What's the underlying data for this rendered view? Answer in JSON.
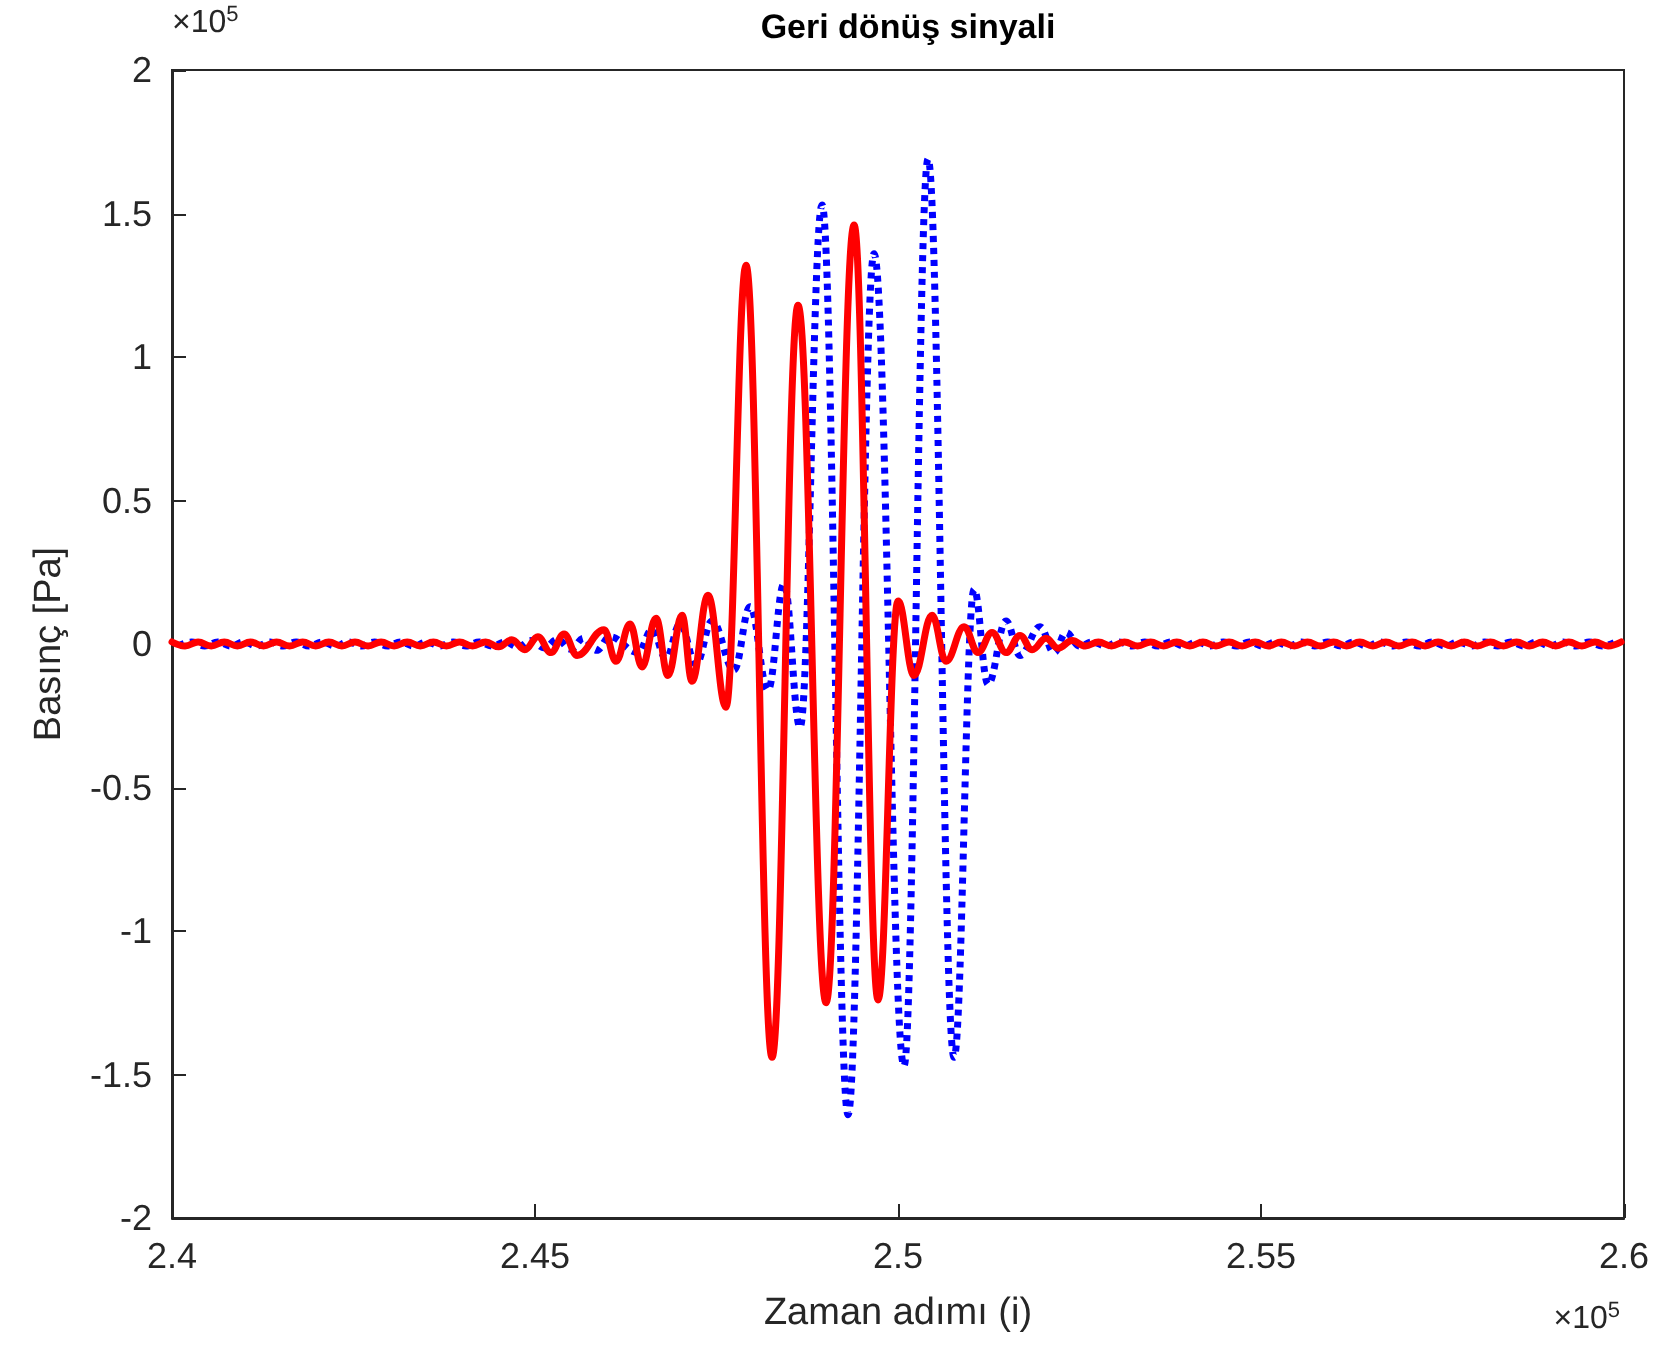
{
  "chart_data": {
    "type": "line",
    "title": "Geri dönüş sinyali",
    "xlabel": "Zaman adımı (i)",
    "ylabel": "Basınç [Pa]",
    "annotations": [
      "×10$^{5}$",
      "×10$^{5}$"
    ],
    "xlim": [
      2.4,
      2.6
    ],
    "xticks": [
      2.4,
      2.45,
      2.5,
      2.55,
      2.6
    ],
    "ylim": [
      -2,
      2
    ],
    "yticks": [
      -2,
      -1.5,
      -1,
      -0.5,
      0,
      0.5,
      1,
      1.5,
      2
    ],
    "grid": false,
    "marker": "none",
    "series": [
      {
        "color": "#0000ff",
        "line_style": "dotted",
        "x": [
          2.4009,
          2.4027,
          2.4045,
          2.4063,
          2.4081,
          2.4099,
          2.4117,
          2.4135,
          2.4153,
          2.4171,
          2.4189,
          2.4207,
          2.4225,
          2.4243,
          2.4261,
          2.4279,
          2.4297,
          2.4315,
          2.4333,
          2.4351,
          2.4369,
          2.4387,
          2.4405,
          2.4423,
          2.4441,
          2.4459,
          2.4477,
          2.4495,
          2.4513,
          2.4531,
          2.4549,
          2.4567,
          2.4585,
          2.4603,
          2.46419,
          2.46612,
          2.46805,
          2.46998,
          2.47218,
          2.47439,
          2.47742,
          2.47962,
          2.4821,
          2.4843,
          2.48651,
          2.48954,
          2.49312,
          2.4967,
          2.50083,
          2.50414,
          2.50772,
          2.51048,
          2.5124,
          2.51488,
          2.51681,
          2.51957,
          2.5215,
          2.52315,
          2.525,
          2.5268,
          2.5286,
          2.5304,
          2.5322,
          2.534,
          2.5358,
          2.5376,
          2.5394,
          2.5412,
          2.543,
          2.5448,
          2.5466,
          2.5484,
          2.5502,
          2.552,
          2.5538,
          2.5556,
          2.5574,
          2.5592,
          2.561,
          2.5628,
          2.5646,
          2.5664,
          2.5682,
          2.57,
          2.5718,
          2.5736,
          2.5754,
          2.5772,
          2.579,
          2.5808,
          2.5826,
          2.5844,
          2.5862,
          2.588,
          2.5898,
          2.5916,
          2.5934,
          2.5952,
          2.597,
          2.5988
        ],
        "values": [
          -0.007,
          0.007,
          -0.007,
          0.007,
          -0.007,
          0.007,
          -0.007,
          0.007,
          -0.007,
          0.007,
          -0.007,
          0.007,
          -0.007,
          0.007,
          -0.007,
          0.007,
          -0.007,
          0.007,
          -0.007,
          0.007,
          -0.007,
          0.007,
          -0.007,
          0.007,
          -0.007,
          0.007,
          -0.01,
          0.012,
          -0.014,
          0.016,
          -0.018,
          0.02,
          -0.022,
          0.025,
          -0.03,
          0.05,
          -0.05,
          0.07,
          -0.07,
          0.08,
          -0.09,
          0.13,
          -0.16,
          0.21,
          -0.29,
          1.53,
          -1.64,
          1.36,
          -1.47,
          1.69,
          -1.44,
          0.19,
          -0.14,
          0.08,
          -0.04,
          0.06,
          -0.03,
          0.04,
          -0.007,
          0.007,
          -0.007,
          0.007,
          -0.007,
          0.007,
          -0.007,
          0.007,
          -0.007,
          0.007,
          -0.007,
          0.007,
          -0.007,
          0.007,
          -0.007,
          0.007,
          -0.007,
          0.007,
          -0.007,
          0.007,
          -0.007,
          0.007,
          -0.007,
          0.007,
          -0.007,
          0.007,
          -0.007,
          0.007,
          -0.007,
          0.007,
          -0.007,
          0.007,
          -0.007,
          0.007,
          -0.007,
          0.007,
          -0.007,
          0.007,
          -0.007,
          0.007,
          -0.007,
          0.007
        ]
      },
      {
        "color": "#ff0000",
        "line_style": "solid",
        "x": [
          2.4,
          2.4018,
          2.4036,
          2.4054,
          2.4072,
          2.409,
          2.4108,
          2.4126,
          2.4144,
          2.4162,
          2.418,
          2.4198,
          2.4216,
          2.4234,
          2.4252,
          2.427,
          2.4288,
          2.4306,
          2.4324,
          2.4342,
          2.436,
          2.4378,
          2.4396,
          2.4414,
          2.4432,
          2.445,
          2.4468,
          2.4486,
          2.4504,
          2.4522,
          2.454,
          2.4558,
          2.45951,
          2.46116,
          2.46309,
          2.46474,
          2.46667,
          2.46832,
          2.47025,
          2.47163,
          2.47383,
          2.47631,
          2.47907,
          2.48265,
          2.48623,
          2.49009,
          2.49395,
          2.49725,
          2.50001,
          2.50221,
          2.50469,
          2.50662,
          2.5091,
          2.51102,
          2.51295,
          2.51488,
          2.51681,
          2.51847,
          2.52039,
          2.52205,
          2.52398,
          2.5258,
          2.5276,
          2.5294,
          2.5312,
          2.533,
          2.5348,
          2.5366,
          2.5384,
          2.5402,
          2.542,
          2.5438,
          2.5456,
          2.5474,
          2.5492,
          2.551,
          2.5528,
          2.5546,
          2.5564,
          2.5582,
          2.56,
          2.5618,
          2.5636,
          2.5654,
          2.5672,
          2.569,
          2.5708,
          2.5726,
          2.5744,
          2.5762,
          2.578,
          2.5798,
          2.5816,
          2.5834,
          2.5852,
          2.587,
          2.5888,
          2.5906,
          2.5924,
          2.5942,
          2.596,
          2.5978,
          2.5996
        ],
        "values": [
          0.007,
          -0.007,
          0.007,
          -0.007,
          0.007,
          -0.007,
          0.007,
          -0.007,
          0.007,
          -0.007,
          0.007,
          -0.007,
          0.007,
          -0.007,
          0.007,
          -0.007,
          0.007,
          -0.007,
          0.007,
          -0.007,
          0.007,
          -0.007,
          0.007,
          -0.007,
          0.007,
          -0.01,
          0.015,
          -0.02,
          0.025,
          -0.03,
          0.035,
          -0.04,
          0.05,
          -0.06,
          0.07,
          -0.08,
          0.09,
          -0.11,
          0.1,
          -0.13,
          0.17,
          -0.22,
          1.32,
          -1.44,
          1.18,
          -1.25,
          1.46,
          -1.24,
          0.15,
          -0.11,
          0.1,
          -0.06,
          0.06,
          -0.03,
          0.04,
          -0.03,
          0.03,
          -0.02,
          0.02,
          -0.015,
          0.012,
          -0.007,
          0.007,
          -0.007,
          0.007,
          -0.007,
          0.007,
          -0.007,
          0.007,
          -0.007,
          0.007,
          -0.007,
          0.007,
          -0.007,
          0.007,
          -0.007,
          0.007,
          -0.007,
          0.007,
          -0.007,
          0.007,
          -0.007,
          0.007,
          -0.007,
          0.007,
          -0.007,
          0.007,
          -0.007,
          0.007,
          -0.007,
          0.007,
          -0.007,
          0.007,
          -0.007,
          0.007,
          -0.007,
          0.007,
          -0.007,
          0.007,
          -0.007,
          0.007,
          -0.007,
          0.007
        ]
      }
    ]
  }
}
